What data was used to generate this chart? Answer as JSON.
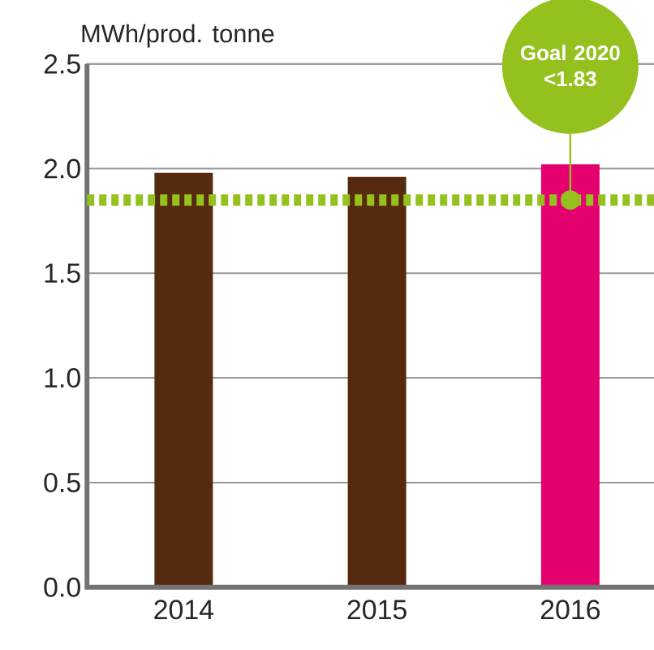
{
  "chart_data": {
    "type": "bar",
    "ylabel": "MWh/prod. tonne",
    "categories": [
      "2014",
      "2015",
      "2016"
    ],
    "values": [
      1.98,
      1.96,
      2.02
    ],
    "colors": [
      "#562a0e",
      "#562a0e",
      "#e4006e"
    ],
    "ylim": [
      0,
      2.5
    ],
    "yticks": [
      {
        "value": 0,
        "label": "0.0"
      },
      {
        "value": 0.5,
        "label": "0.5"
      },
      {
        "value": 1,
        "label": "1.0"
      },
      {
        "value": 1.5,
        "label": "1.5"
      },
      {
        "value": 2,
        "label": "2.0"
      },
      {
        "value": 2.5,
        "label": "2.5"
      }
    ],
    "grid": "y",
    "ref_lines": [
      {
        "axis": "y",
        "value": 1.85,
        "color": "#95c11f",
        "line_style": "dotted"
      }
    ],
    "annotations": [
      "**Goal 2020** **<1.83**"
    ]
  }
}
